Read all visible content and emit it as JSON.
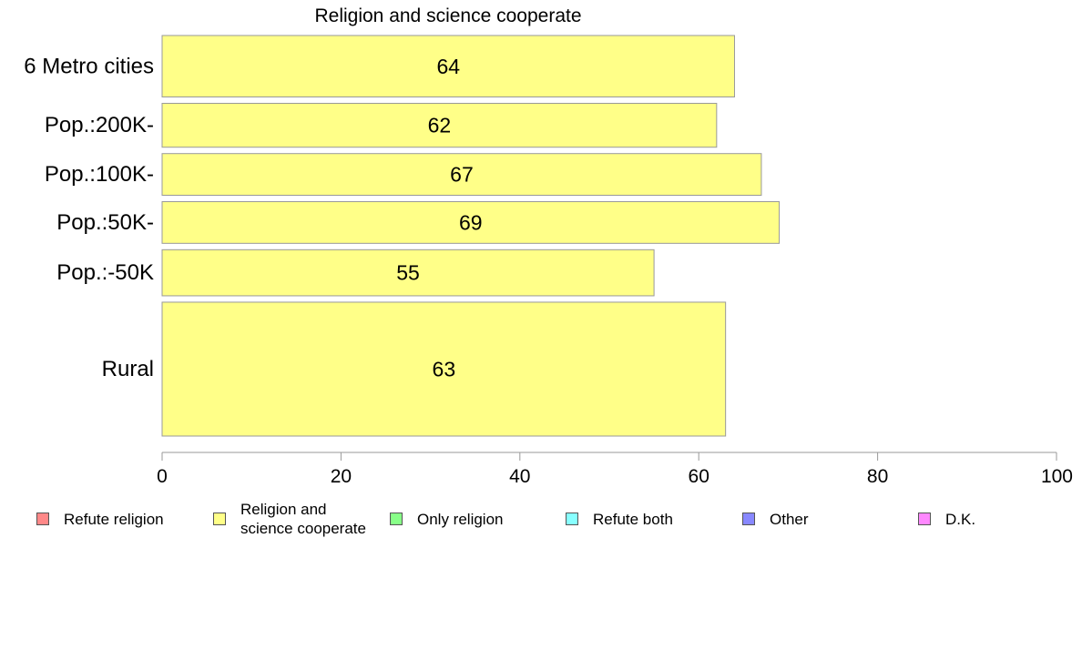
{
  "chart_data": {
    "type": "bar",
    "orientation": "horizontal",
    "title": "Religion and science cooperate",
    "categories": [
      "6 Metro cities",
      "Pop.:200K-",
      "Pop.:100K-",
      "Pop.:50K-",
      "Pop.:-50K",
      "Rural"
    ],
    "category_weights": [
      1.4,
      1.0,
      0.95,
      0.95,
      1.05,
      3.05
    ],
    "values": [
      64,
      62,
      67,
      69,
      55,
      63
    ],
    "data_labels": [
      "64",
      "62",
      "67",
      "69",
      "55",
      "63"
    ],
    "xlim": [
      0,
      100
    ],
    "x_ticks": [
      "0",
      "20",
      "40",
      "60",
      "80",
      "100"
    ],
    "xlabel": "",
    "ylabel": "",
    "grid": false,
    "bar_color": "#ffff88",
    "bar_edge_color": "#999999",
    "legend_position": "bottom",
    "legend": [
      {
        "label": "Refute religion",
        "color": "#ff8888"
      },
      {
        "label": "Religion and\nscience cooperate",
        "color": "#ffff88"
      },
      {
        "label": "Only religion",
        "color": "#88ff88"
      },
      {
        "label": "Refute both",
        "color": "#88ffff"
      },
      {
        "label": "Other",
        "color": "#8888ff"
      },
      {
        "label": "D.K.",
        "color": "#ff88ff"
      }
    ]
  }
}
